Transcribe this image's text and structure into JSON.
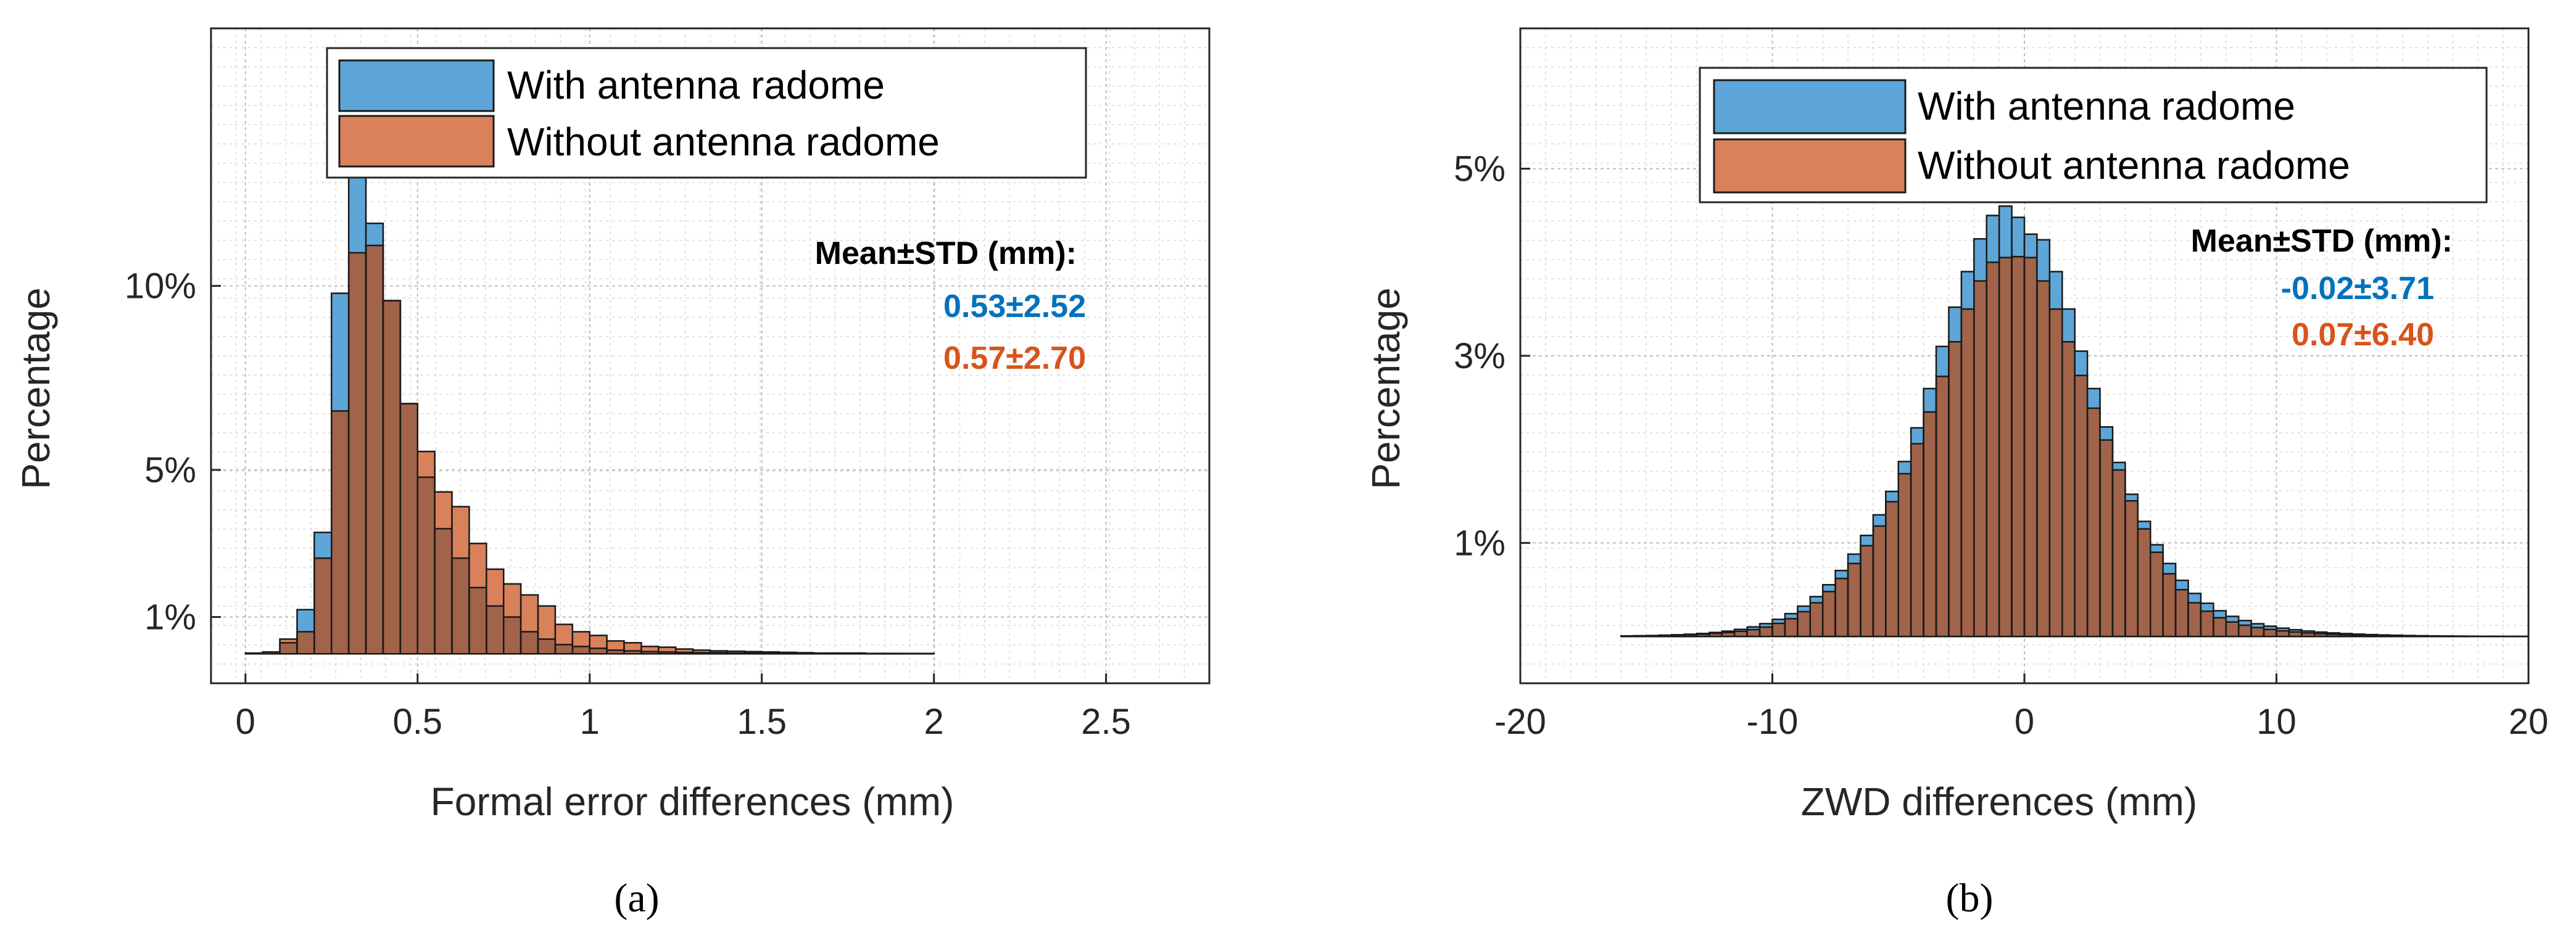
{
  "chart_data": [
    {
      "type": "bar",
      "panel": "(a)",
      "xlabel": "Formal error differences (mm)",
      "ylabel": "Percentage",
      "xlim": [
        -0.1,
        2.8
      ],
      "ylim": [
        -0.8,
        17
      ],
      "xticks": [
        0,
        0.5,
        1,
        1.5,
        2,
        2.5
      ],
      "xtick_labels": [
        "0",
        "0.5",
        "1",
        "1.5",
        "2",
        "2.5"
      ],
      "yticks": [
        1,
        5,
        10
      ],
      "ytick_labels": [
        "1%",
        "5%",
        "10%"
      ],
      "bin_start": 0,
      "bin_width": 0.05,
      "series": [
        {
          "name": "With antenna radome",
          "color": "#0072BD",
          "values": [
            0,
            0.05,
            0.3,
            1.2,
            3.3,
            9.8,
            13.1,
            11.7,
            9.6,
            6.8,
            4.8,
            3.4,
            2.6,
            1.8,
            1.3,
            1.0,
            0.6,
            0.4,
            0.25,
            0.2,
            0.15,
            0.1,
            0.08,
            0.06,
            0.05,
            0.04,
            0.03,
            0.03,
            0.02,
            0.02,
            0.02,
            0.02,
            0.01,
            0.01,
            0.01,
            0.01,
            0.01,
            0.01,
            0,
            0,
            0,
            0,
            0,
            0,
            0,
            0,
            0,
            0,
            0,
            0,
            0,
            0,
            0,
            0,
            0
          ]
        },
        {
          "name": "Without antenna radome",
          "color": "#D95319",
          "values": [
            0.02,
            0.05,
            0.4,
            0.6,
            2.6,
            6.6,
            10.9,
            11.1,
            9.6,
            6.8,
            5.5,
            4.4,
            4.0,
            3.0,
            2.3,
            1.9,
            1.6,
            1.3,
            0.8,
            0.6,
            0.5,
            0.35,
            0.3,
            0.2,
            0.18,
            0.13,
            0.1,
            0.08,
            0.07,
            0.06,
            0.05,
            0.04,
            0.03,
            0.02,
            0.02,
            0.02,
            0.01,
            0.01,
            0.01,
            0.01,
            0,
            0,
            0,
            0,
            0,
            0,
            0,
            0,
            0,
            0,
            0,
            0,
            0,
            0,
            0
          ]
        }
      ],
      "legend": [
        "With antenna radome",
        "Without antenna radome"
      ],
      "legend_position": "top-center",
      "annotations": {
        "header": "Mean±STD (mm):",
        "with": "0.53±2.52",
        "without": "0.57±2.70"
      },
      "grid": true,
      "minor_grid": true
    },
    {
      "type": "bar",
      "panel": "(b)",
      "xlabel": "ZWD differences (mm)",
      "ylabel": "Percentage",
      "xlim": [
        -20,
        20
      ],
      "ylim": [
        -0.5,
        6.5
      ],
      "xticks": [
        -20,
        -10,
        0,
        10,
        20
      ],
      "xtick_labels": [
        "-20",
        "-10",
        "0",
        "10",
        "20"
      ],
      "yticks": [
        1,
        3,
        5
      ],
      "ytick_labels": [
        "1%",
        "3%",
        "5%"
      ],
      "bin_start": -16,
      "bin_width": 0.5,
      "series": [
        {
          "name": "With antenna radome",
          "color": "#0072BD",
          "values": [
            0.006,
            0.008,
            0.01,
            0.014,
            0.018,
            0.024,
            0.032,
            0.043,
            0.057,
            0.076,
            0.102,
            0.137,
            0.183,
            0.244,
            0.324,
            0.426,
            0.553,
            0.705,
            0.88,
            1.08,
            1.3,
            1.55,
            1.87,
            2.23,
            2.65,
            3.1,
            3.52,
            3.9,
            4.25,
            4.5,
            4.6,
            4.48,
            4.3,
            4.24,
            3.9,
            3.5,
            3.05,
            2.65,
            2.24,
            1.86,
            1.52,
            1.23,
            0.98,
            0.78,
            0.6,
            0.46,
            0.355,
            0.275,
            0.215,
            0.17,
            0.136,
            0.11,
            0.089,
            0.072,
            0.058,
            0.047,
            0.038,
            0.031,
            0.025,
            0.02,
            0.016,
            0.013,
            0.01,
            0.008,
            0.006,
            0.005,
            0.004,
            0.003,
            0.002,
            0.002,
            0.001,
            0.001
          ]
        },
        {
          "name": "Without antenna radome",
          "color": "#D95319",
          "values": [
            0.004,
            0.006,
            0.008,
            0.011,
            0.014,
            0.019,
            0.025,
            0.033,
            0.043,
            0.055,
            0.073,
            0.1,
            0.14,
            0.19,
            0.265,
            0.36,
            0.48,
            0.62,
            0.78,
            0.97,
            1.18,
            1.44,
            1.74,
            2.06,
            2.4,
            2.78,
            3.15,
            3.5,
            3.8,
            4.0,
            4.05,
            4.06,
            4.05,
            3.8,
            3.5,
            3.15,
            2.79,
            2.44,
            2.1,
            1.78,
            1.45,
            1.15,
            0.9,
            0.67,
            0.5,
            0.36,
            0.27,
            0.2,
            0.155,
            0.12,
            0.095,
            0.075,
            0.06,
            0.048,
            0.038,
            0.03,
            0.024,
            0.019,
            0.015,
            0.012,
            0.009,
            0.007,
            0.005,
            0.004,
            0.003,
            0.002,
            0.002,
            0.001,
            0.001,
            0.001,
            0.001,
            0.001
          ]
        }
      ],
      "legend": [
        "With antenna radome",
        "Without antenna radome"
      ],
      "legend_position": "top-right",
      "annotations": {
        "header": "Mean±STD (mm):",
        "with": "-0.02±3.71",
        "without": "0.07±6.40"
      },
      "grid": true,
      "minor_grid": true
    }
  ],
  "captions": {
    "a": "(a)",
    "b": "(b)"
  },
  "colors": {
    "with_fill": "#5EA6D8",
    "without_fill": "#D9815A",
    "overlap_fill": "#A1634A",
    "edge": "#1a1a1a",
    "with_text": "#0072BD",
    "without_text": "#D95319"
  }
}
